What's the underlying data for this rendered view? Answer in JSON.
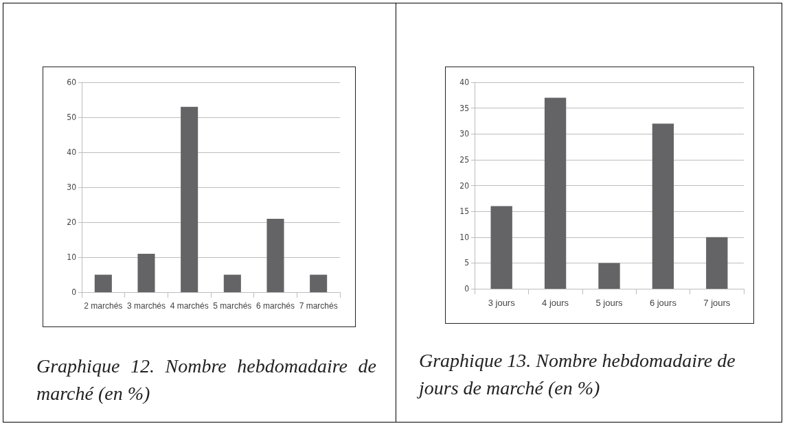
{
  "chart_data": [
    {
      "type": "bar",
      "categories": [
        "2 marchés",
        "3 marchés",
        "4 marchés",
        "5 marchés",
        "6 marchés",
        "7 marchés"
      ],
      "values": [
        5,
        11,
        53,
        5,
        21,
        5
      ],
      "color": "#646466",
      "ylim": [
        0,
        60
      ],
      "yticks": [
        0,
        10,
        20,
        30,
        40,
        50,
        60
      ],
      "grid": "y",
      "annotations": [
        "Graphique 12. Nombre hebdomadaire de marché (en %)"
      ]
    },
    {
      "type": "bar",
      "categories": [
        "3 jours",
        "4 jours",
        "5 jours",
        "6 jours",
        "7 jours"
      ],
      "values": [
        16,
        37,
        5,
        32,
        10
      ],
      "color": "#646466",
      "ylim": [
        0,
        40
      ],
      "yticks": [
        0,
        5,
        10,
        15,
        20,
        25,
        30,
        35,
        40
      ],
      "grid": "y",
      "annotations": [
        "Graphique 13. Nombre hebdomadaire de jours de marché (en %)"
      ]
    }
  ]
}
